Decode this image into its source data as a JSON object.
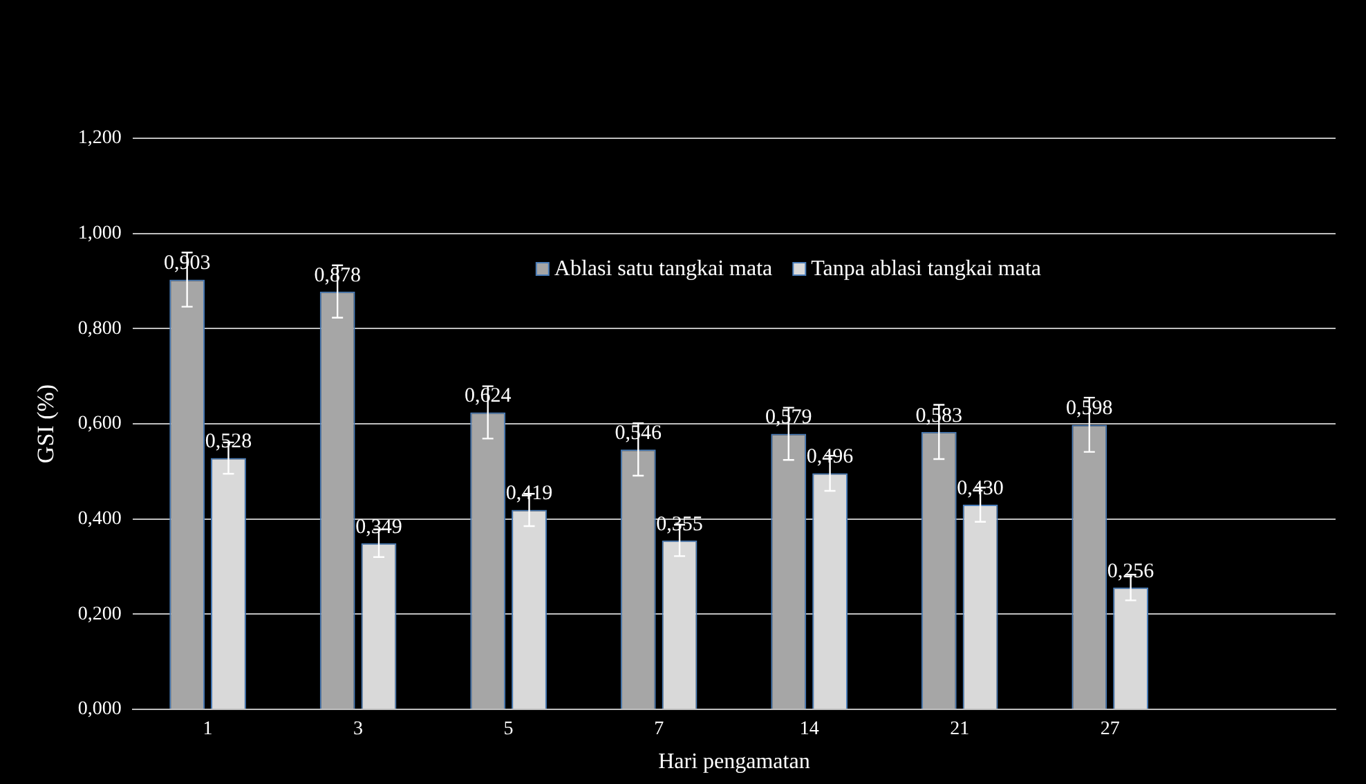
{
  "chart_data": {
    "type": "bar",
    "xlabel": "Hari pengamatan",
    "ylabel": "GSI (%)",
    "categories": [
      "1",
      "3",
      "5",
      "7",
      "14",
      "21",
      "27",
      null
    ],
    "series": [
      {
        "name": "Ablasi satu tangkai mata",
        "color": "#a6a6a6",
        "values": [
          0.903,
          0.878,
          0.624,
          0.546,
          0.579,
          0.583,
          0.598,
          null
        ],
        "errors": [
          0.057,
          0.055,
          0.055,
          0.055,
          0.055,
          0.057,
          0.057,
          null
        ],
        "value_labels": [
          "0,903",
          "0,878",
          "0,624",
          "0,546",
          "0,579",
          "0,583",
          "0,598",
          null
        ]
      },
      {
        "name": "Tanpa ablasi tangkai mata",
        "color": "#d9d9d9",
        "values": [
          0.528,
          0.349,
          0.419,
          0.355,
          0.496,
          0.43,
          0.256,
          null
        ],
        "errors": [
          0.033,
          0.029,
          0.034,
          0.033,
          0.037,
          0.036,
          0.027,
          null
        ],
        "value_labels": [
          "0,528",
          "0,349",
          "0,419",
          "0,355",
          "0,496",
          "0,430",
          "0,256",
          null
        ]
      }
    ],
    "ylim": [
      0,
      1.2
    ],
    "yticks": [
      {
        "value": 0,
        "label": "0,000"
      },
      {
        "value": 0.2,
        "label": "0,200"
      },
      {
        "value": 0.4,
        "label": "0,400"
      },
      {
        "value": 0.6,
        "label": "0,600"
      },
      {
        "value": 0.8,
        "label": "0,800"
      },
      {
        "value": 1,
        "label": "1,000"
      },
      {
        "value": 1.2,
        "label": "1,200"
      }
    ],
    "grid": "y",
    "legend": "top"
  }
}
